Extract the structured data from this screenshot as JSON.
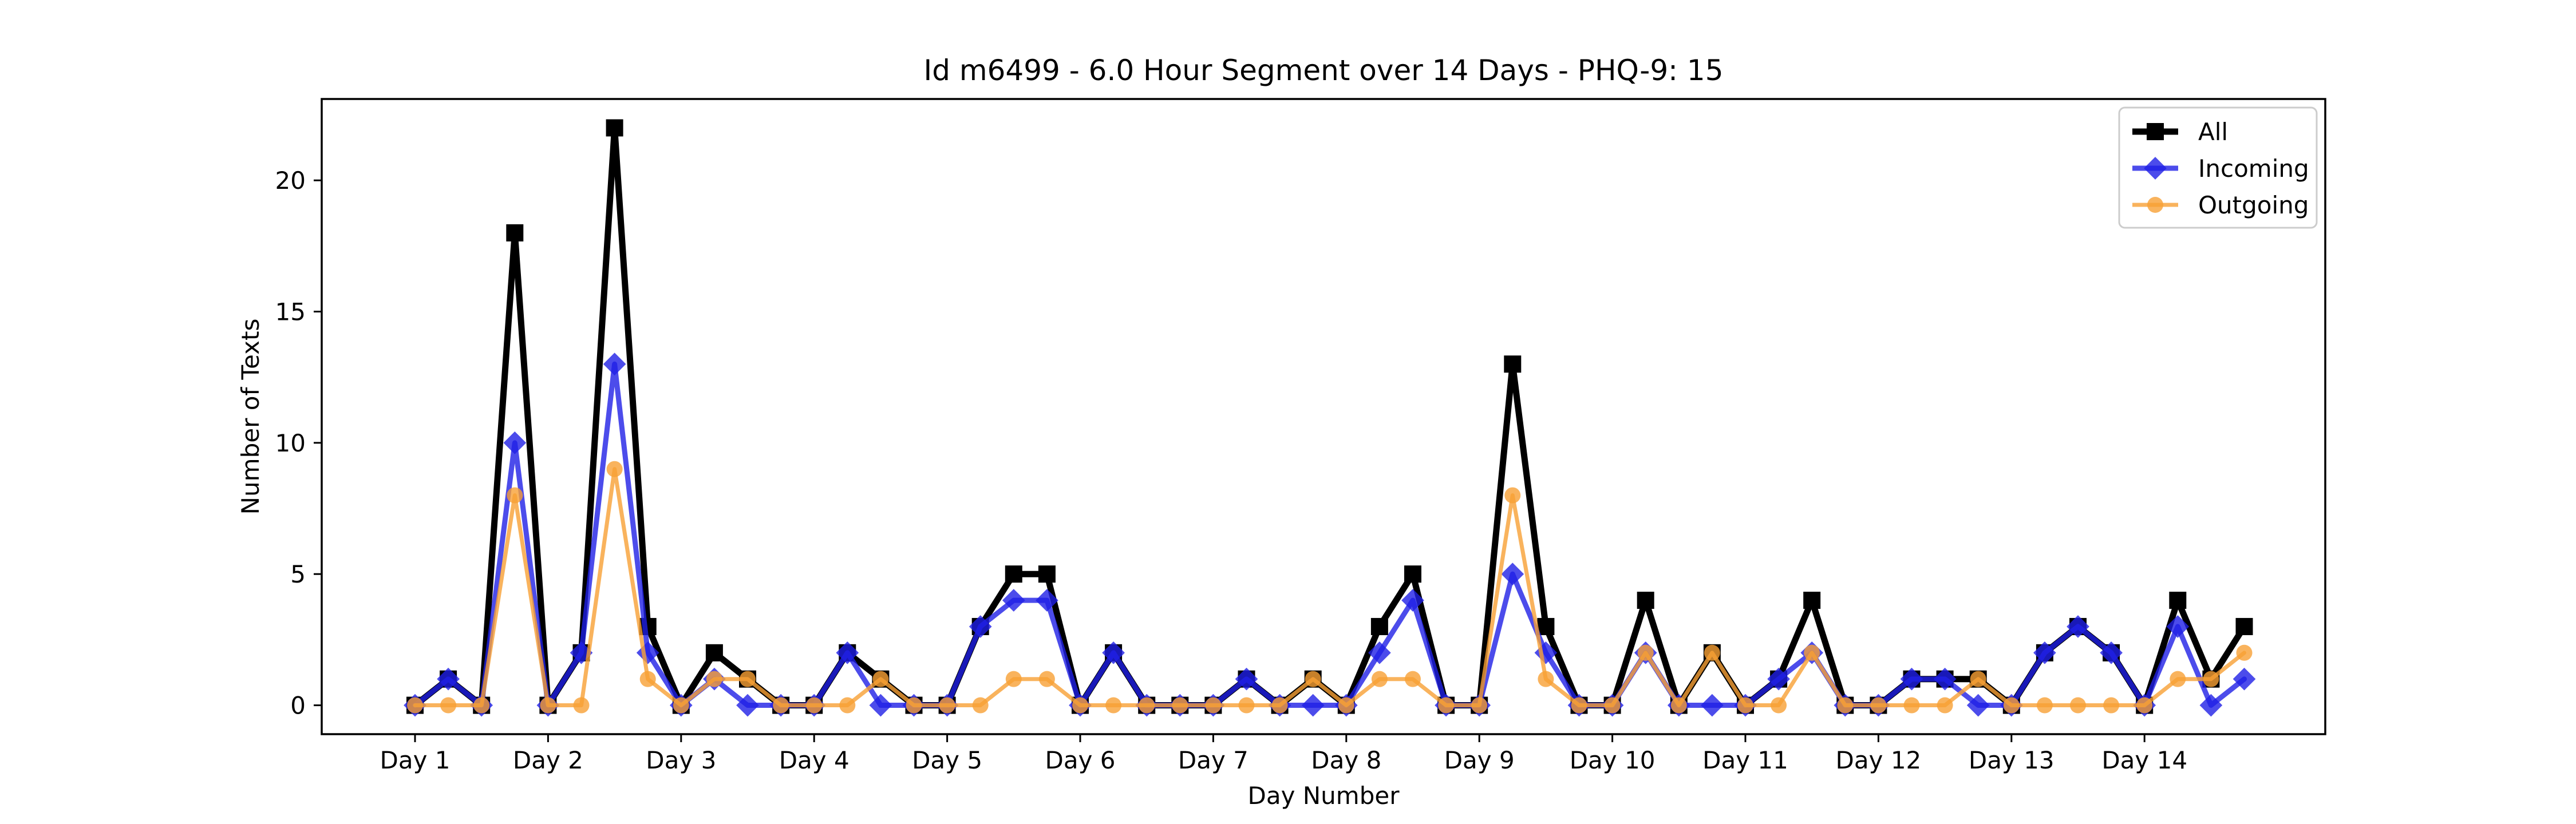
{
  "chart_data": {
    "type": "line",
    "title": "Id m6499 - 6.0 Hour Segment over 14 Days - PHQ-9: 15",
    "xlabel": "Day Number",
    "ylabel": "Number of Texts",
    "x_tick_labels": [
      "Day 1",
      "Day 2",
      "Day 3",
      "Day 4",
      "Day 5",
      "Day 6",
      "Day 7",
      "Day 8",
      "Day 9",
      "Day 10",
      "Day 11",
      "Day 12",
      "Day 13",
      "Day 14"
    ],
    "y_ticks": [
      0,
      5,
      10,
      15,
      20
    ],
    "ylim": [
      -1.1,
      23.1
    ],
    "legend_position": "top-right",
    "grid": false,
    "series": [
      {
        "name": "All",
        "color": "#000000",
        "marker": "square",
        "values": [
          0,
          1,
          0,
          18,
          0,
          2,
          22,
          3,
          0,
          2,
          1,
          0,
          0,
          2,
          1,
          0,
          0,
          3,
          5,
          5,
          0,
          2,
          0,
          0,
          0,
          1,
          0,
          1,
          0,
          3,
          5,
          0,
          0,
          13,
          3,
          0,
          0,
          4,
          0,
          2,
          0,
          1,
          4,
          0,
          0,
          1,
          1,
          1,
          0,
          2,
          3,
          2,
          0,
          4,
          1,
          3
        ]
      },
      {
        "name": "Incoming",
        "color": "#1f1fe6",
        "marker": "diamond",
        "values": [
          0,
          1,
          0,
          10,
          0,
          2,
          13,
          2,
          0,
          1,
          0,
          0,
          0,
          2,
          0,
          0,
          0,
          3,
          4,
          4,
          0,
          2,
          0,
          0,
          0,
          1,
          0,
          0,
          0,
          2,
          4,
          0,
          0,
          5,
          2,
          0,
          0,
          2,
          0,
          0,
          0,
          1,
          2,
          0,
          0,
          1,
          1,
          0,
          0,
          2,
          3,
          2,
          0,
          3,
          0,
          1
        ]
      },
      {
        "name": "Outgoing",
        "color": "#f7a035",
        "marker": "circle",
        "values": [
          0,
          0,
          0,
          8,
          0,
          0,
          9,
          1,
          0,
          1,
          1,
          0,
          0,
          0,
          1,
          0,
          0,
          0,
          1,
          1,
          0,
          0,
          0,
          0,
          0,
          0,
          0,
          1,
          0,
          1,
          1,
          0,
          0,
          8,
          1,
          0,
          0,
          2,
          0,
          2,
          0,
          0,
          2,
          0,
          0,
          0,
          0,
          1,
          0,
          0,
          0,
          0,
          0,
          1,
          1,
          2
        ]
      }
    ]
  }
}
